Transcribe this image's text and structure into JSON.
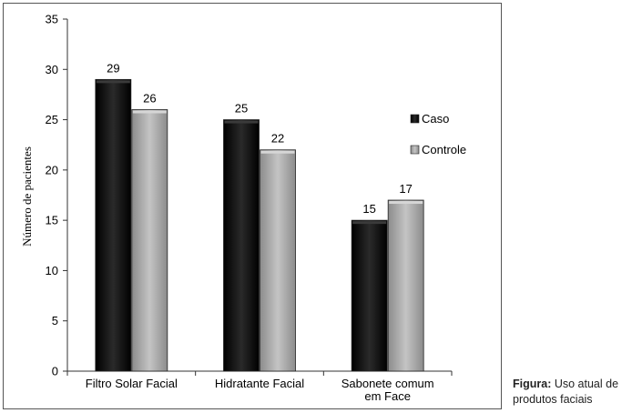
{
  "chart_data": {
    "type": "bar",
    "ylabel": "Número de pacientes",
    "ylim": [
      0,
      35
    ],
    "yticks": [
      0,
      5,
      10,
      15,
      20,
      25,
      30,
      35
    ],
    "categories": [
      [
        "Filtro Solar Facial"
      ],
      [
        "Hidratante Facial"
      ],
      [
        "Sabonete comum",
        "em Face"
      ]
    ],
    "series": [
      {
        "name": "Caso",
        "values": [
          29,
          25,
          15
        ],
        "color": "#111111"
      },
      {
        "name": "Controle",
        "values": [
          26,
          22,
          17
        ],
        "color": "#a8a8a8"
      }
    ],
    "legend_position": "right",
    "grid": false
  },
  "caption": {
    "label": "Figura:",
    "text": "Uso atual de produtos faciais"
  }
}
